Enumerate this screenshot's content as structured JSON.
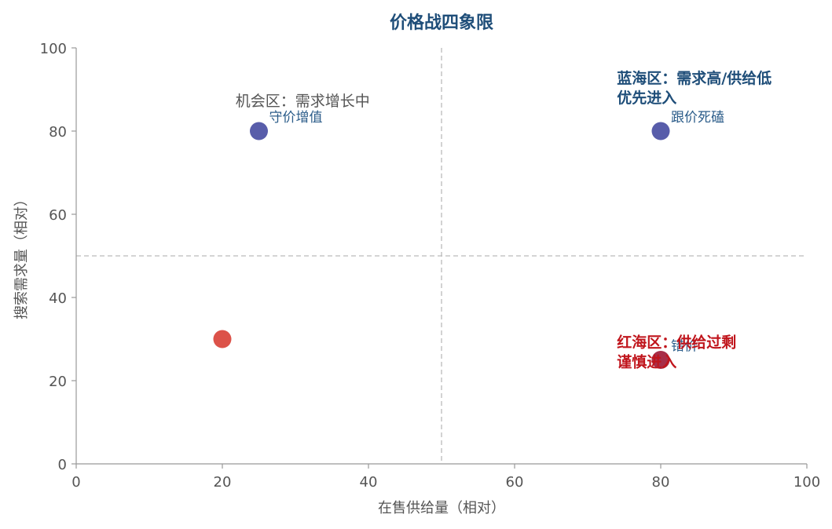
{
  "chart_data": {
    "type": "scatter",
    "title": "价格战四象限",
    "xlabel": "在售供给量（相对）",
    "ylabel": "搜索需求量（相对）",
    "xlim": [
      0,
      100
    ],
    "ylim": [
      0,
      100
    ],
    "xticks": [
      "0",
      "20",
      "40",
      "60",
      "80",
      "100"
    ],
    "yticks": [
      "0",
      "20",
      "40",
      "60",
      "80",
      "100"
    ],
    "threshold_x": 50,
    "threshold_y": 50,
    "grid": false,
    "points": [
      {
        "x": 25,
        "y": 80,
        "label": "守价增值",
        "color": "#4a4fa3",
        "label_color": "#2c5d8a"
      },
      {
        "x": 80,
        "y": 80,
        "label": "跟价死磕",
        "color": "#4a4fa3",
        "label_color": "#2c5d8a"
      },
      {
        "x": 20,
        "y": 30,
        "label": "",
        "color": "#d9433a",
        "label_color": "#2c5d8a"
      },
      {
        "x": 80,
        "y": 25,
        "label": "错价",
        "color": "#a01c3a",
        "label_color": "#2c5d8a"
      }
    ],
    "annotations": [
      {
        "lines": [
          "机会区：需求增长中"
        ],
        "x": 21.8,
        "y": 86.0,
        "color": "#555555",
        "bold": false
      },
      {
        "lines": [
          "蓝海区：需求高/供给低",
          "优先进入"
        ],
        "x": 74.0,
        "y": 91.5,
        "color": "#1f4e79",
        "bold": true
      },
      {
        "lines": [
          "红海区：供给过剩",
          "谨慎进入"
        ],
        "x": 74.0,
        "y": 28.0,
        "color": "#c0151c",
        "bold": true
      }
    ],
    "colors": {
      "title": "#1f4e79",
      "axis": "#999999",
      "guide": "#bbbbbb"
    }
  }
}
